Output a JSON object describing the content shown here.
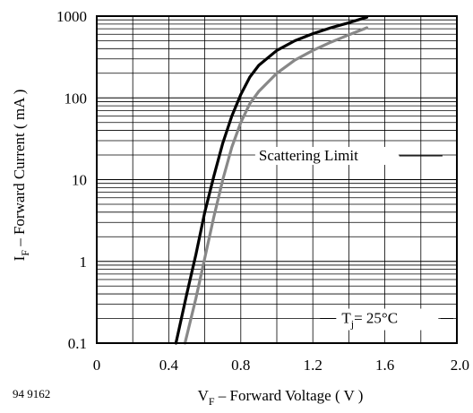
{
  "figure_id": "94 9162",
  "chart_data": {
    "type": "line",
    "xlabel_main": "V",
    "xlabel_sub": "F",
    "xlabel_rest": " – Forward Voltage ( V )",
    "ylabel_main": "I",
    "ylabel_sub": "F",
    "ylabel_rest": " – Forward Current ( mA )",
    "xlim": [
      0,
      2.0
    ],
    "ylim": [
      0.1,
      1000
    ],
    "y_scale": "log",
    "grid": true,
    "x_ticks": [
      0,
      0.4,
      0.8,
      1.2,
      1.6,
      2.0
    ],
    "x_tick_labels": [
      "0",
      "0.4",
      "0.8",
      "1.2",
      "1.6",
      "2.0"
    ],
    "y_ticks": [
      0.1,
      1,
      10,
      100,
      1000
    ],
    "y_tick_labels": [
      "0.1",
      "1",
      "10",
      "100",
      "1000"
    ],
    "series": [
      {
        "color": "#000000",
        "x": [
          0.44,
          0.5,
          0.55,
          0.6,
          0.65,
          0.7,
          0.75,
          0.8,
          0.85,
          0.9,
          1.0,
          1.1,
          1.2,
          1.3,
          1.4,
          1.5
        ],
        "y": [
          0.1,
          0.4,
          1.2,
          4,
          11,
          28,
          60,
          110,
          180,
          250,
          380,
          500,
          610,
          720,
          830,
          970
        ]
      },
      {
        "color": "#888888",
        "x": [
          0.49,
          0.55,
          0.6,
          0.65,
          0.7,
          0.75,
          0.8,
          0.85,
          0.9,
          1.0,
          1.1,
          1.2,
          1.3,
          1.4,
          1.5
        ],
        "y": [
          0.1,
          0.35,
          1.1,
          3.5,
          10,
          25,
          50,
          85,
          120,
          200,
          290,
          380,
          480,
          590,
          720
        ]
      }
    ],
    "annotations": {
      "scattering_limit": "Scattering Limit",
      "temp_main": "T",
      "temp_sub": "j",
      "temp_rest": "= 25°C"
    }
  }
}
